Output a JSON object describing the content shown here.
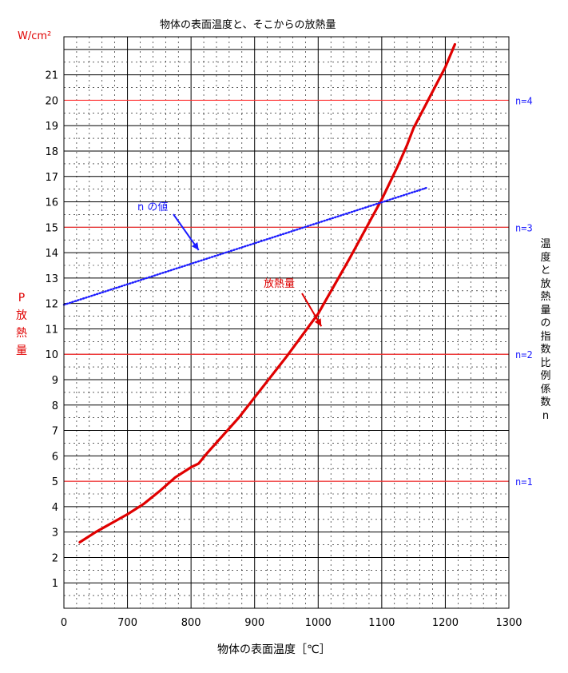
{
  "chart_data": {
    "type": "line",
    "title": "物体の表面温度と、そこからの放熱量",
    "xlabel": "物体の表面温度［℃］",
    "x_ticks": [
      "0",
      "700",
      "800",
      "900",
      "1000",
      "1100",
      "1200",
      "1300"
    ],
    "y_unit": "W/cm²",
    "y_ticks": [
      "1",
      "2",
      "3",
      "4",
      "5",
      "6",
      "7",
      "8",
      "9",
      "10",
      "11",
      "12",
      "13",
      "14",
      "15",
      "16",
      "17",
      "18",
      "19",
      "20",
      "21"
    ],
    "ylim": [
      0,
      22.5
    ],
    "y_axis_label_left": "P\n放\n熱\n量",
    "y_axis_label_right": "温\n度\nと\n放\n熱\n量\nの\n指\n数\n比\n例\n係\n数\nn",
    "x_axis_note": "x axis starts at 600 ℃ (first tick labelled 0)",
    "reference_lines": [
      {
        "label": "n=1",
        "y": 5
      },
      {
        "label": "n=2",
        "y": 10
      },
      {
        "label": "n=3",
        "y": 15
      },
      {
        "label": "n=4",
        "y": 20
      }
    ],
    "series": [
      {
        "name": "放熱量",
        "color": "#e00000",
        "points": [
          [
            625,
            2.6
          ],
          [
            650,
            3.0
          ],
          [
            675,
            3.35
          ],
          [
            700,
            3.7
          ],
          [
            725,
            4.1
          ],
          [
            750,
            4.6
          ],
          [
            775,
            5.15
          ],
          [
            800,
            5.55
          ],
          [
            812,
            5.7
          ],
          [
            825,
            6.1
          ],
          [
            850,
            6.8
          ],
          [
            875,
            7.5
          ],
          [
            900,
            8.3
          ],
          [
            925,
            9.1
          ],
          [
            950,
            9.9
          ],
          [
            975,
            10.75
          ],
          [
            1000,
            11.6
          ],
          [
            1025,
            12.7
          ],
          [
            1050,
            13.8
          ],
          [
            1075,
            14.95
          ],
          [
            1100,
            16.1
          ],
          [
            1125,
            17.4
          ],
          [
            1140,
            18.25
          ],
          [
            1150,
            18.9
          ],
          [
            1175,
            20.1
          ],
          [
            1200,
            21.3
          ],
          [
            1215,
            22.2
          ]
        ]
      },
      {
        "name": "n の値",
        "color": "#1c1cff",
        "style": "dotted",
        "points": [
          [
            600,
            11.95
          ],
          [
            1170,
            16.55
          ]
        ]
      }
    ],
    "annotations": [
      {
        "text": "n の値",
        "color": "#1c1cff",
        "target": [
          812,
          14.1
        ]
      },
      {
        "text": "放熱量",
        "color": "#e00000",
        "target": [
          1005,
          11.1
        ]
      }
    ]
  }
}
